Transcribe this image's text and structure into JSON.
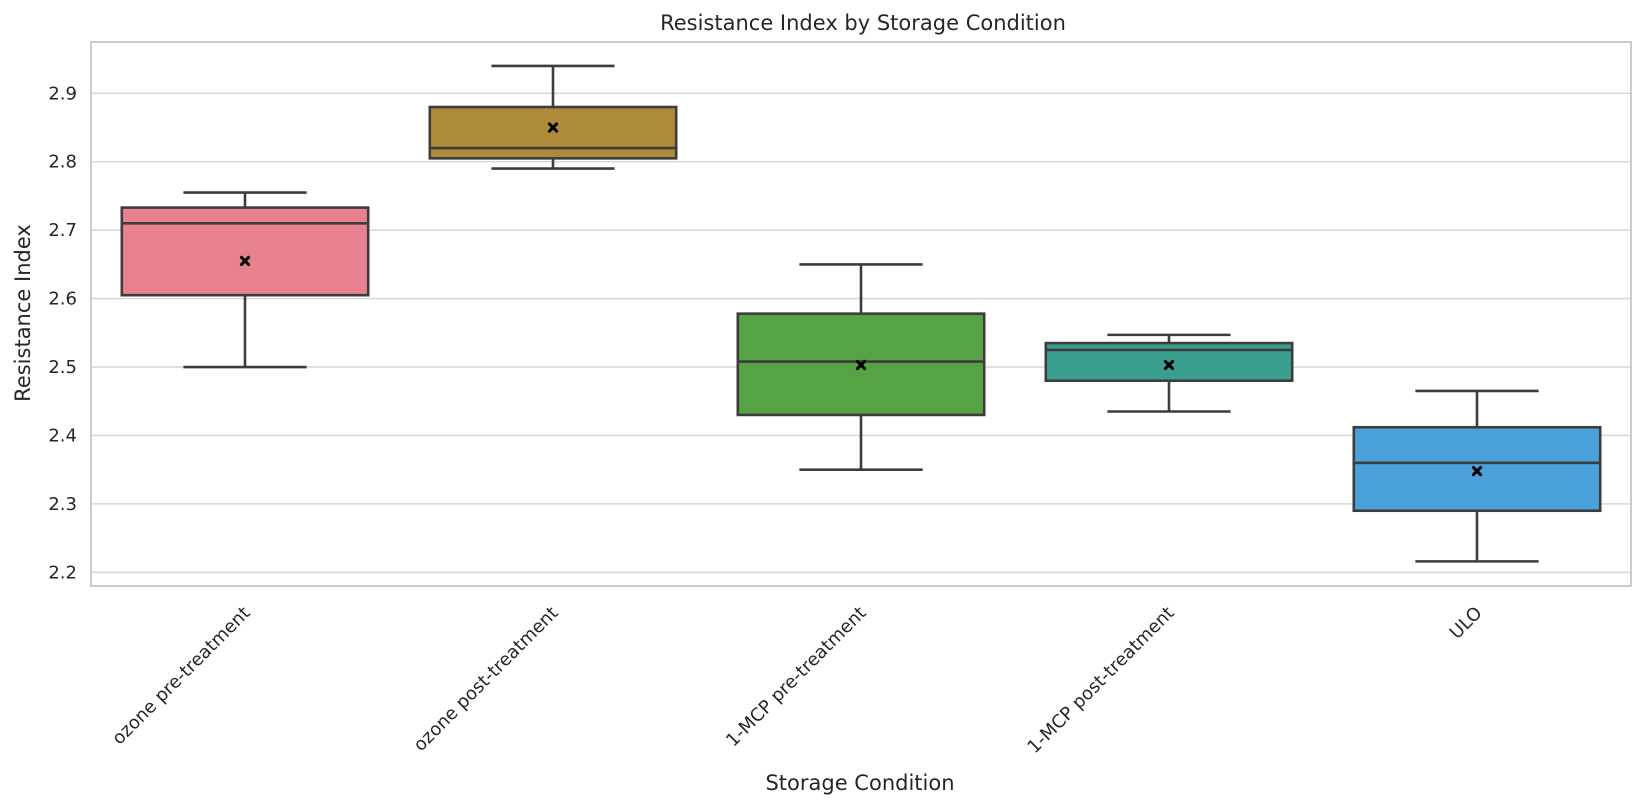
{
  "chart_data": {
    "type": "box",
    "title": "Resistance Index by Storage Condition",
    "xlabel": "Storage Condition",
    "ylabel": "Resistance Index",
    "ylim": [
      2.18,
      2.975
    ],
    "yticks": [
      2.2,
      2.3,
      2.4,
      2.5,
      2.6,
      2.7,
      2.8,
      2.9
    ],
    "grid": "horizontal",
    "categories": [
      "ozone pre-treatment",
      "ozone post-treatment",
      "1-MCP pre-treatment",
      "1-MCP post-treatment",
      "ULO"
    ],
    "boxes": [
      {
        "category": "ozone pre-treatment",
        "whisker_low": 2.5,
        "q1": 2.605,
        "median": 2.71,
        "q3": 2.733,
        "whisker_high": 2.755,
        "mean": 2.655,
        "color": "#e8818f"
      },
      {
        "category": "ozone post-treatment",
        "whisker_low": 2.79,
        "q1": 2.805,
        "median": 2.82,
        "q3": 2.88,
        "whisker_high": 2.94,
        "mean": 2.85,
        "color": "#ad8b3a"
      },
      {
        "category": "1-MCP pre-treatment",
        "whisker_low": 2.35,
        "q1": 2.43,
        "median": 2.508,
        "q3": 2.578,
        "whisker_high": 2.65,
        "mean": 2.503,
        "color": "#55a344"
      },
      {
        "category": "1-MCP post-treatment",
        "whisker_low": 2.435,
        "q1": 2.48,
        "median": 2.525,
        "q3": 2.535,
        "whisker_high": 2.547,
        "mean": 2.503,
        "color": "#3a9f8e"
      },
      {
        "category": "ULO",
        "whisker_low": 2.216,
        "q1": 2.29,
        "median": 2.36,
        "q3": 2.412,
        "whisker_high": 2.465,
        "mean": 2.348,
        "color": "#4ba1d9"
      }
    ],
    "mean_marker": "x"
  }
}
